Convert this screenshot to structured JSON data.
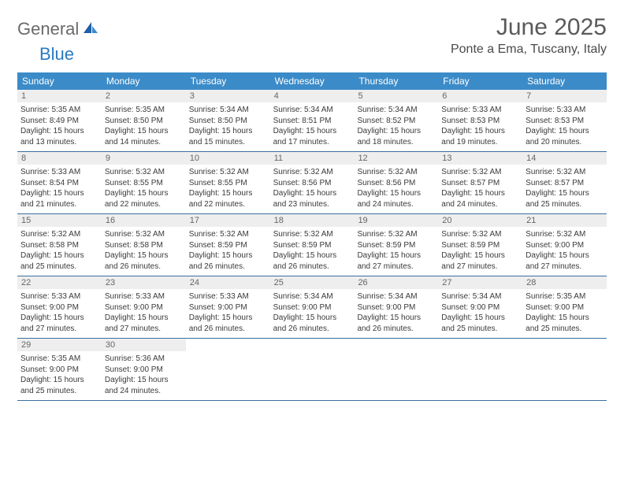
{
  "logo": {
    "text1": "General",
    "text2": "Blue"
  },
  "title": "June 2025",
  "location": "Ponte a Ema, Tuscany, Italy",
  "weekdays": [
    "Sunday",
    "Monday",
    "Tuesday",
    "Wednesday",
    "Thursday",
    "Friday",
    "Saturday"
  ],
  "colors": {
    "header_bar": "#3b8bc8",
    "header_text": "#ffffff",
    "daynum_bg": "#eeeeee",
    "daynum_text": "#666666",
    "body_text": "#3a3a3a",
    "row_border": "#3b6fa0",
    "title_text": "#5a5a5a",
    "logo_gray": "#6a6a6a",
    "logo_blue": "#2a7ac0"
  },
  "typography": {
    "title_fontsize": 30,
    "location_fontsize": 16,
    "weekday_fontsize": 12,
    "daynum_fontsize": 11,
    "cell_fontsize": 10
  },
  "days": [
    {
      "n": "1",
      "sunrise": "5:35 AM",
      "sunset": "8:49 PM",
      "daylight": "15 hours and 13 minutes."
    },
    {
      "n": "2",
      "sunrise": "5:35 AM",
      "sunset": "8:50 PM",
      "daylight": "15 hours and 14 minutes."
    },
    {
      "n": "3",
      "sunrise": "5:34 AM",
      "sunset": "8:50 PM",
      "daylight": "15 hours and 15 minutes."
    },
    {
      "n": "4",
      "sunrise": "5:34 AM",
      "sunset": "8:51 PM",
      "daylight": "15 hours and 17 minutes."
    },
    {
      "n": "5",
      "sunrise": "5:34 AM",
      "sunset": "8:52 PM",
      "daylight": "15 hours and 18 minutes."
    },
    {
      "n": "6",
      "sunrise": "5:33 AM",
      "sunset": "8:53 PM",
      "daylight": "15 hours and 19 minutes."
    },
    {
      "n": "7",
      "sunrise": "5:33 AM",
      "sunset": "8:53 PM",
      "daylight": "15 hours and 20 minutes."
    },
    {
      "n": "8",
      "sunrise": "5:33 AM",
      "sunset": "8:54 PM",
      "daylight": "15 hours and 21 minutes."
    },
    {
      "n": "9",
      "sunrise": "5:32 AM",
      "sunset": "8:55 PM",
      "daylight": "15 hours and 22 minutes."
    },
    {
      "n": "10",
      "sunrise": "5:32 AM",
      "sunset": "8:55 PM",
      "daylight": "15 hours and 22 minutes."
    },
    {
      "n": "11",
      "sunrise": "5:32 AM",
      "sunset": "8:56 PM",
      "daylight": "15 hours and 23 minutes."
    },
    {
      "n": "12",
      "sunrise": "5:32 AM",
      "sunset": "8:56 PM",
      "daylight": "15 hours and 24 minutes."
    },
    {
      "n": "13",
      "sunrise": "5:32 AM",
      "sunset": "8:57 PM",
      "daylight": "15 hours and 24 minutes."
    },
    {
      "n": "14",
      "sunrise": "5:32 AM",
      "sunset": "8:57 PM",
      "daylight": "15 hours and 25 minutes."
    },
    {
      "n": "15",
      "sunrise": "5:32 AM",
      "sunset": "8:58 PM",
      "daylight": "15 hours and 25 minutes."
    },
    {
      "n": "16",
      "sunrise": "5:32 AM",
      "sunset": "8:58 PM",
      "daylight": "15 hours and 26 minutes."
    },
    {
      "n": "17",
      "sunrise": "5:32 AM",
      "sunset": "8:59 PM",
      "daylight": "15 hours and 26 minutes."
    },
    {
      "n": "18",
      "sunrise": "5:32 AM",
      "sunset": "8:59 PM",
      "daylight": "15 hours and 26 minutes."
    },
    {
      "n": "19",
      "sunrise": "5:32 AM",
      "sunset": "8:59 PM",
      "daylight": "15 hours and 27 minutes."
    },
    {
      "n": "20",
      "sunrise": "5:32 AM",
      "sunset": "8:59 PM",
      "daylight": "15 hours and 27 minutes."
    },
    {
      "n": "21",
      "sunrise": "5:32 AM",
      "sunset": "9:00 PM",
      "daylight": "15 hours and 27 minutes."
    },
    {
      "n": "22",
      "sunrise": "5:33 AM",
      "sunset": "9:00 PM",
      "daylight": "15 hours and 27 minutes."
    },
    {
      "n": "23",
      "sunrise": "5:33 AM",
      "sunset": "9:00 PM",
      "daylight": "15 hours and 27 minutes."
    },
    {
      "n": "24",
      "sunrise": "5:33 AM",
      "sunset": "9:00 PM",
      "daylight": "15 hours and 26 minutes."
    },
    {
      "n": "25",
      "sunrise": "5:34 AM",
      "sunset": "9:00 PM",
      "daylight": "15 hours and 26 minutes."
    },
    {
      "n": "26",
      "sunrise": "5:34 AM",
      "sunset": "9:00 PM",
      "daylight": "15 hours and 26 minutes."
    },
    {
      "n": "27",
      "sunrise": "5:34 AM",
      "sunset": "9:00 PM",
      "daylight": "15 hours and 25 minutes."
    },
    {
      "n": "28",
      "sunrise": "5:35 AM",
      "sunset": "9:00 PM",
      "daylight": "15 hours and 25 minutes."
    },
    {
      "n": "29",
      "sunrise": "5:35 AM",
      "sunset": "9:00 PM",
      "daylight": "15 hours and 25 minutes."
    },
    {
      "n": "30",
      "sunrise": "5:36 AM",
      "sunset": "9:00 PM",
      "daylight": "15 hours and 24 minutes."
    }
  ],
  "labels": {
    "sunrise_prefix": "Sunrise: ",
    "sunset_prefix": "Sunset: ",
    "daylight_prefix": "Daylight: "
  },
  "layout": {
    "columns": 7,
    "start_weekday_index": 0,
    "trailing_empty": 5
  }
}
